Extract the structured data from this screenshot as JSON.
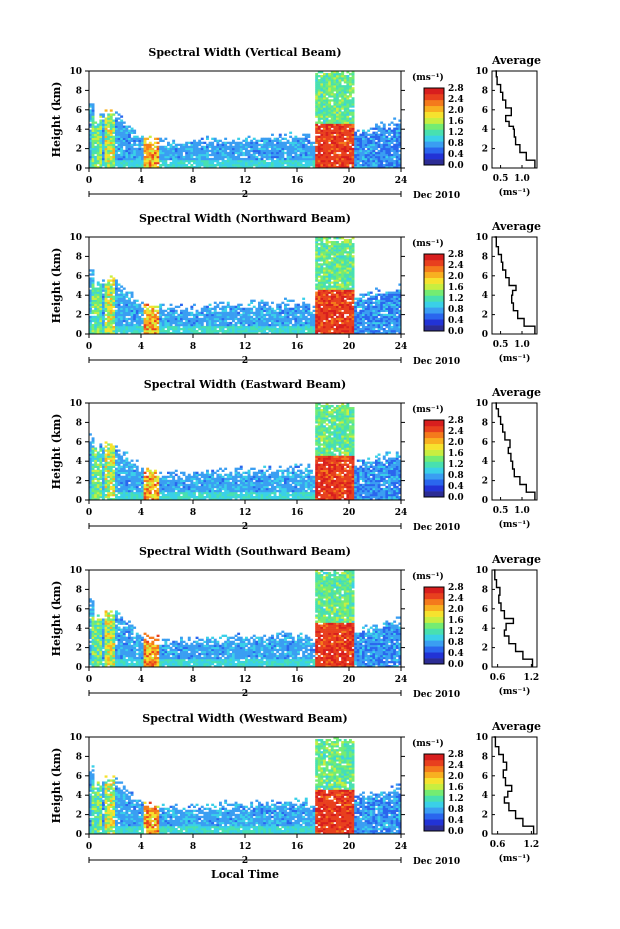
{
  "x_axis_label": "Local Time",
  "date_label": "Dec 2010",
  "day_label": "2",
  "colorbar": {
    "unit": "(ms⁻¹)",
    "ticks": [
      "2.8",
      "2.4",
      "2.0",
      "1.6",
      "1.2",
      "0.8",
      "0.4",
      "0.0"
    ],
    "colors": [
      "#2c2c94",
      "#2233d6",
      "#2a66ee",
      "#3a9ef2",
      "#3ad0e8",
      "#48e0b0",
      "#74ec72",
      "#c8ee40",
      "#f6e22e",
      "#f8b020",
      "#f47a1c",
      "#e8401e",
      "#d81e1e"
    ]
  },
  "chart_data": [
    {
      "type": "heatmap",
      "title": "Spectral Width (Vertical Beam)",
      "ylabel": "Height (km)",
      "xlim": [
        0,
        24
      ],
      "ylim": [
        0,
        10
      ],
      "xticks": [
        0,
        4,
        8,
        12,
        16,
        20,
        24
      ],
      "yticks": [
        0,
        2,
        4,
        6,
        8,
        10
      ],
      "avg": {
        "title": "Average",
        "xlabel": "(ms⁻¹)",
        "xlim": [
          0.3,
          1.35
        ],
        "xticks": [
          {
            "v": 0.5,
            "label": "0.5"
          },
          {
            "v": 1.0,
            "label": "1.0"
          }
        ],
        "profile": [
          [
            1.3,
            0
          ],
          [
            1.1,
            0.8
          ],
          [
            0.95,
            1.6
          ],
          [
            0.85,
            2.4
          ],
          [
            0.82,
            3.2
          ],
          [
            0.8,
            4.0
          ],
          [
            0.7,
            4.3
          ],
          [
            0.62,
            4.8
          ],
          [
            0.75,
            5.4
          ],
          [
            0.62,
            6.2
          ],
          [
            0.55,
            7.0
          ],
          [
            0.5,
            7.8
          ],
          [
            0.42,
            8.6
          ],
          [
            0.4,
            9.4
          ],
          [
            0.38,
            10
          ]
        ]
      }
    },
    {
      "type": "heatmap",
      "title": "Spectral Width (Northward Beam)",
      "ylabel": "Height (km)",
      "xlim": [
        0,
        24
      ],
      "ylim": [
        0,
        10
      ],
      "xticks": [
        0,
        4,
        8,
        12,
        16,
        20,
        24
      ],
      "yticks": [
        0,
        2,
        4,
        6,
        8,
        10
      ],
      "avg": {
        "title": "Average",
        "xlabel": "(ms⁻¹)",
        "xlim": [
          0.3,
          1.35
        ],
        "xticks": [
          {
            "v": 0.5,
            "label": "0.5"
          },
          {
            "v": 1.0,
            "label": "1.0"
          }
        ],
        "profile": [
          [
            1.3,
            0
          ],
          [
            1.05,
            0.8
          ],
          [
            0.9,
            1.6
          ],
          [
            0.8,
            2.4
          ],
          [
            0.76,
            3.2
          ],
          [
            0.78,
            4.0
          ],
          [
            0.86,
            4.5
          ],
          [
            0.7,
            5.0
          ],
          [
            0.62,
            5.8
          ],
          [
            0.55,
            6.6
          ],
          [
            0.52,
            7.4
          ],
          [
            0.45,
            8.2
          ],
          [
            0.4,
            9.0
          ],
          [
            0.36,
            10
          ]
        ]
      }
    },
    {
      "type": "heatmap",
      "title": "Spectral Width (Eastward Beam)",
      "ylabel": "Height (km)",
      "xlim": [
        0,
        24
      ],
      "ylim": [
        0,
        10
      ],
      "xticks": [
        0,
        4,
        8,
        12,
        16,
        20,
        24
      ],
      "yticks": [
        0,
        2,
        4,
        6,
        8,
        10
      ],
      "avg": {
        "title": "Average",
        "xlabel": "(ms⁻¹)",
        "xlim": [
          0.3,
          1.35
        ],
        "xticks": [
          {
            "v": 0.5,
            "label": "0.5"
          },
          {
            "v": 1.0,
            "label": "1.0"
          }
        ],
        "profile": [
          [
            1.3,
            0
          ],
          [
            1.1,
            0.8
          ],
          [
            0.95,
            1.6
          ],
          [
            0.82,
            2.4
          ],
          [
            0.78,
            3.2
          ],
          [
            0.74,
            4.0
          ],
          [
            0.68,
            4.8
          ],
          [
            0.72,
            5.4
          ],
          [
            0.6,
            6.2
          ],
          [
            0.55,
            7.0
          ],
          [
            0.5,
            7.8
          ],
          [
            0.45,
            8.6
          ],
          [
            0.4,
            9.4
          ],
          [
            0.38,
            10
          ]
        ]
      }
    },
    {
      "type": "heatmap",
      "title": "Spectral Width (Southward Beam)",
      "ylabel": "Height (km)",
      "xlim": [
        0,
        24
      ],
      "ylim": [
        0,
        10
      ],
      "xticks": [
        0,
        4,
        8,
        12,
        16,
        20,
        24
      ],
      "yticks": [
        0,
        2,
        4,
        6,
        8,
        10
      ],
      "avg": {
        "title": "Average",
        "xlabel": "(ms⁻¹)",
        "xlim": [
          0.5,
          1.3
        ],
        "xticks": [
          {
            "v": 0.6,
            "label": "0.6"
          },
          {
            "v": 1.2,
            "label": "1.2"
          }
        ],
        "profile": [
          [
            1.22,
            0
          ],
          [
            1.05,
            0.8
          ],
          [
            0.92,
            1.6
          ],
          [
            0.8,
            2.4
          ],
          [
            0.72,
            3.2
          ],
          [
            0.75,
            3.8
          ],
          [
            0.88,
            4.5
          ],
          [
            0.72,
            5.0
          ],
          [
            0.66,
            5.8
          ],
          [
            0.62,
            6.6
          ],
          [
            0.64,
            7.4
          ],
          [
            0.58,
            8.2
          ],
          [
            0.55,
            9.0
          ],
          [
            0.53,
            10
          ]
        ]
      }
    },
    {
      "type": "heatmap",
      "title": "Spectral Width (Westward Beam)",
      "ylabel": "Height (km)",
      "xlim": [
        0,
        24
      ],
      "ylim": [
        0,
        10
      ],
      "xticks": [
        0,
        4,
        8,
        12,
        16,
        20,
        24
      ],
      "yticks": [
        0,
        2,
        4,
        6,
        8,
        10
      ],
      "avg": {
        "title": "Average",
        "xlabel": "(ms⁻¹)",
        "xlim": [
          0.5,
          1.3
        ],
        "xticks": [
          {
            "v": 0.6,
            "label": "0.6"
          },
          {
            "v": 1.2,
            "label": "1.2"
          }
        ],
        "profile": [
          [
            1.24,
            0
          ],
          [
            1.05,
            0.8
          ],
          [
            0.92,
            1.6
          ],
          [
            0.8,
            2.4
          ],
          [
            0.72,
            3.2
          ],
          [
            0.78,
            3.8
          ],
          [
            0.85,
            4.4
          ],
          [
            0.74,
            5.0
          ],
          [
            0.7,
            5.8
          ],
          [
            0.76,
            6.6
          ],
          [
            0.7,
            7.4
          ],
          [
            0.62,
            8.2
          ],
          [
            0.56,
            9.0
          ],
          [
            0.53,
            10
          ]
        ]
      }
    }
  ]
}
